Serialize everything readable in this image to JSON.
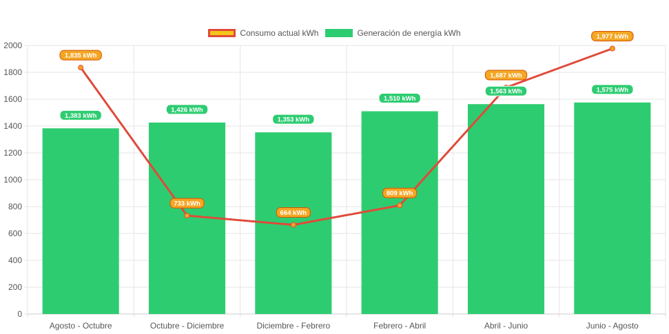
{
  "legend": {
    "line_label": "Consumo actual kWh",
    "bar_label": "Generación de energía kWh"
  },
  "colors": {
    "bar": "#2ecc71",
    "line": "#e04a3a",
    "line_point": "#f5a623",
    "line_label_bg": "#f5a623",
    "grid": "#e6e6e6"
  },
  "chart_data": {
    "type": "bar",
    "categories": [
      "Agosto - Octubre",
      "Octubre - Diciembre",
      "Diciembre - Febrero",
      "Febrero - Abril",
      "Abril - Junio",
      "Junio - Agosto"
    ],
    "series": [
      {
        "name": "Generación de energía kWh",
        "type": "bar",
        "values": [
          1383,
          1426,
          1353,
          1510,
          1563,
          1575
        ],
        "labels": [
          "1,383 kWh",
          "1,426 kWh",
          "1,353 kWh",
          "1,510 kWh",
          "1,563 kWh",
          "1,575 kWh"
        ]
      },
      {
        "name": "Consumo actual kWh",
        "type": "line",
        "values": [
          1835,
          733,
          664,
          809,
          1687,
          1977
        ],
        "labels": [
          "1,835 kWh",
          "733 kWh",
          "664 kWh",
          "809 kWh",
          "1,687 kWh",
          "1,977 kWh"
        ]
      }
    ],
    "y_ticks": [
      "0",
      "200",
      "400",
      "600",
      "800",
      "1000",
      "1200",
      "1400",
      "1600",
      "1800",
      "2000"
    ],
    "ylim": [
      0,
      2000
    ],
    "grid": true,
    "legend_position": "top"
  }
}
